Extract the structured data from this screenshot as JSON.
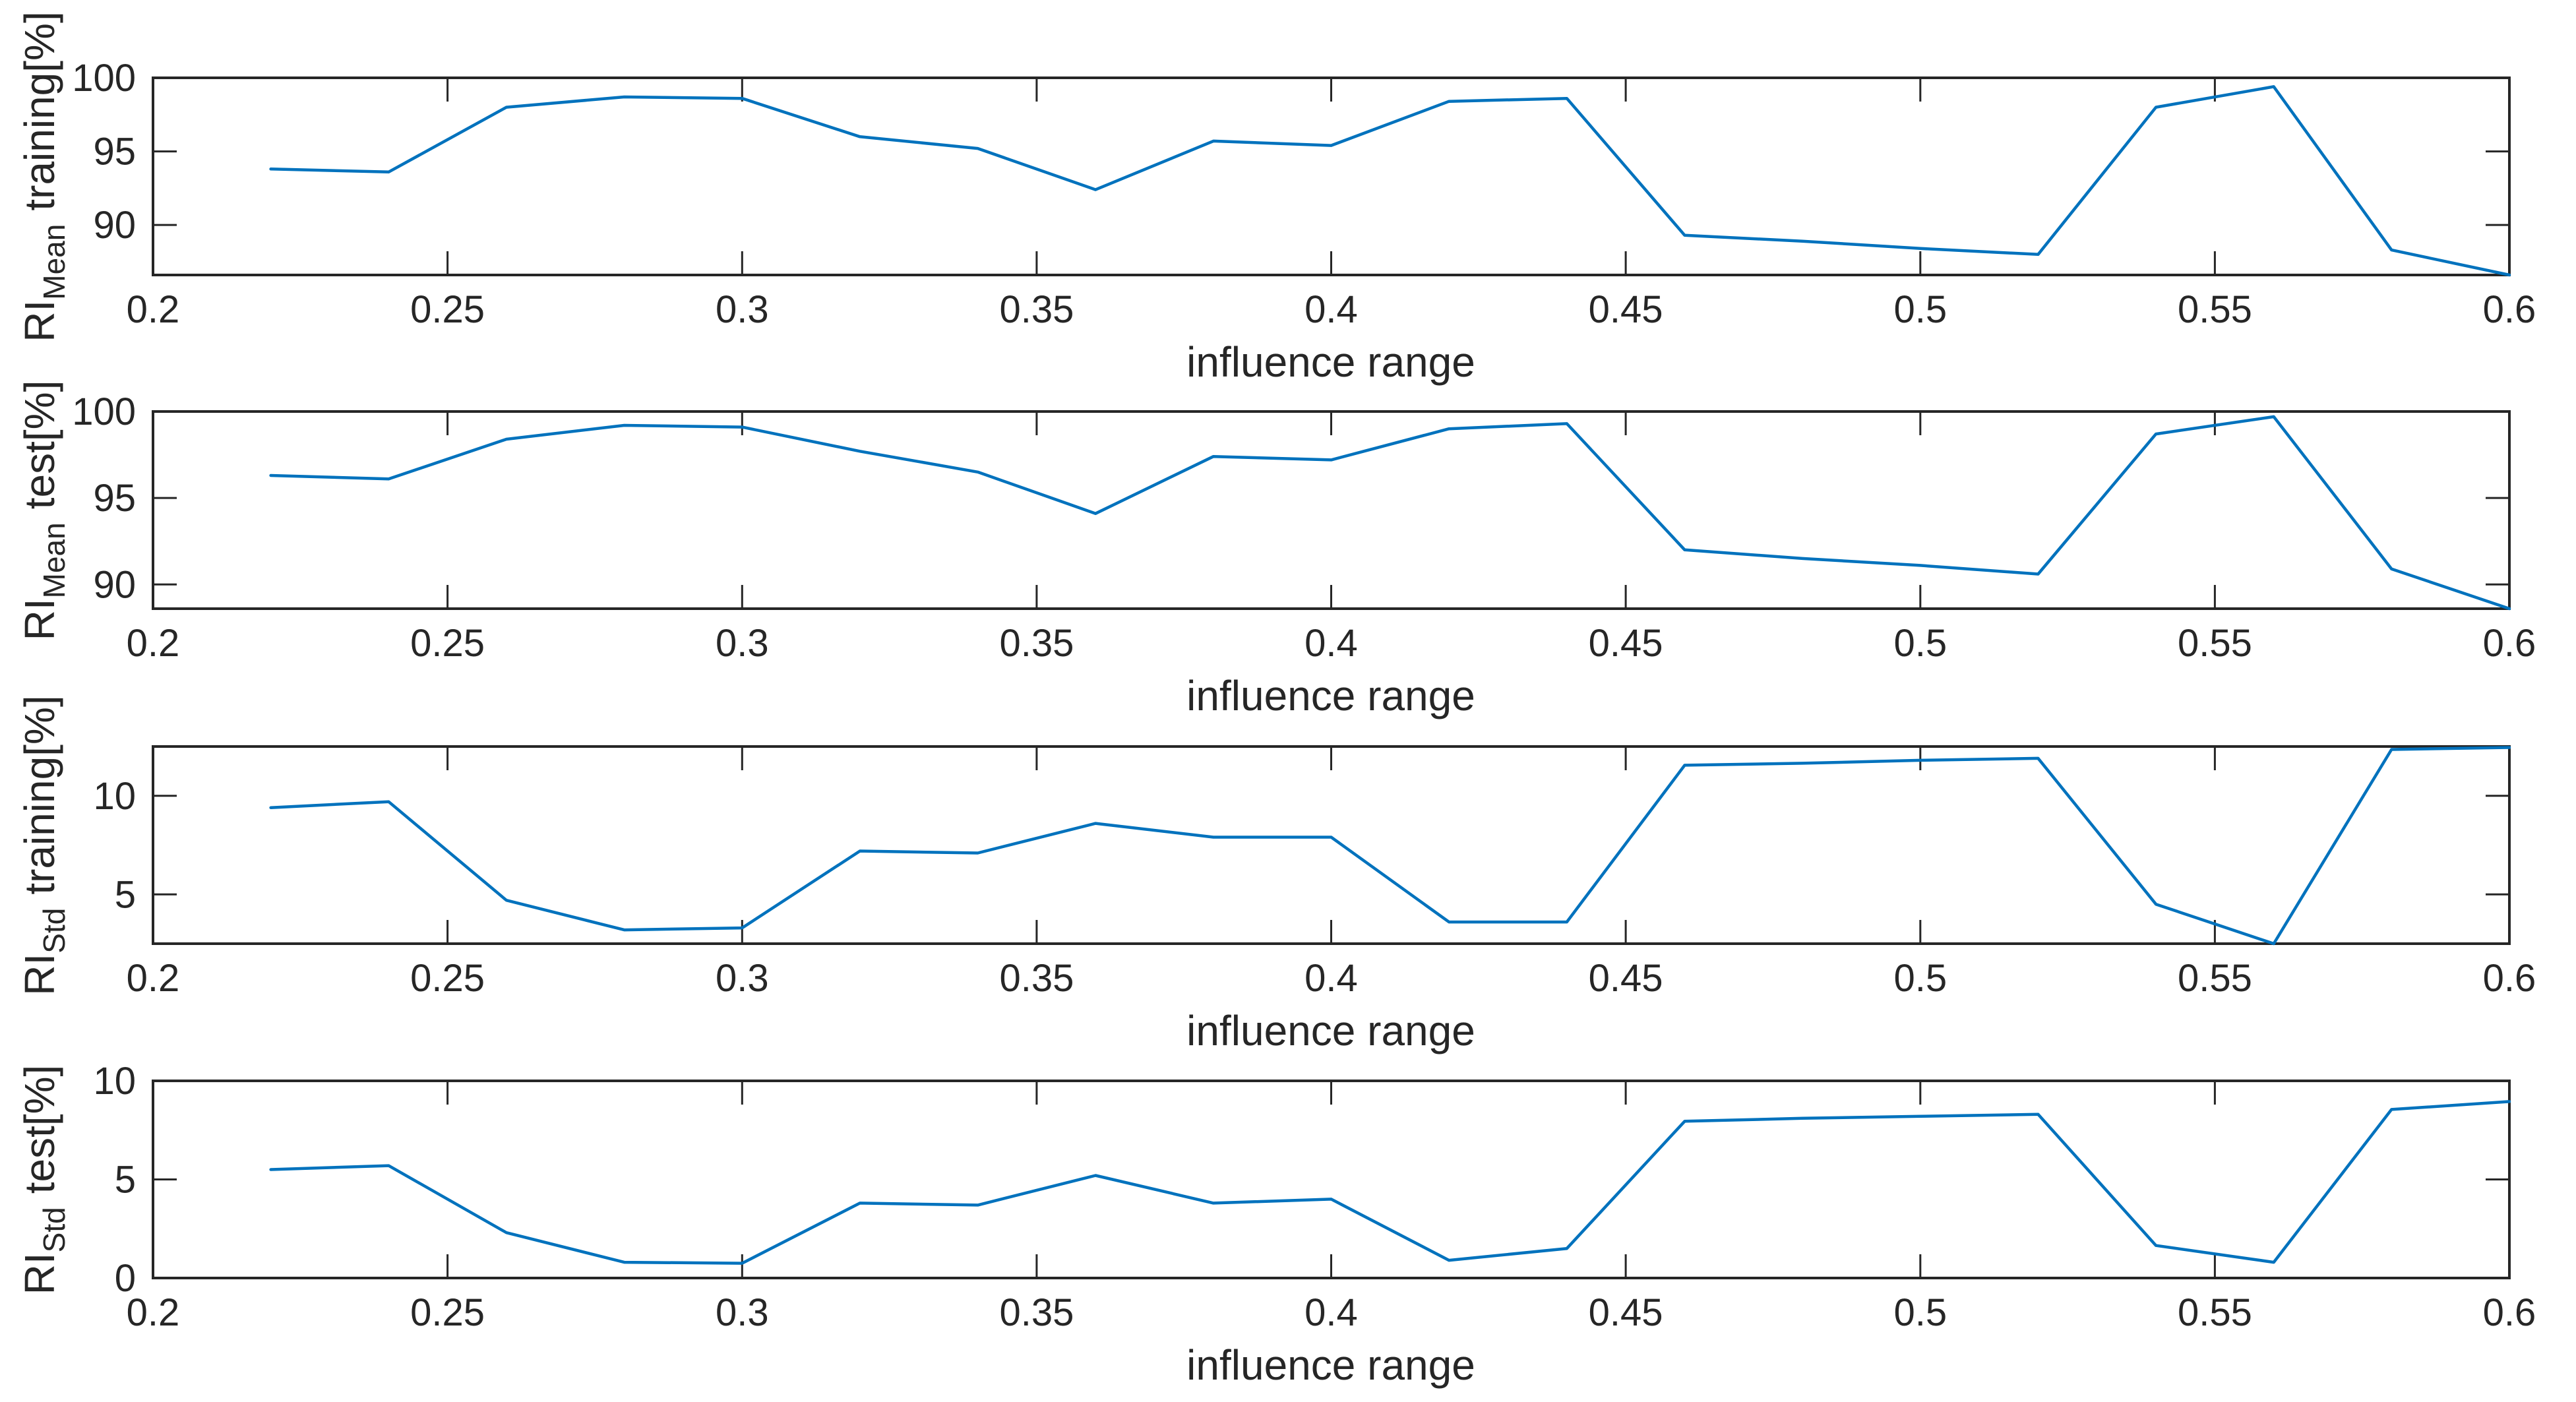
{
  "figure": {
    "background": "#ffffff",
    "line_color": "#0072BD",
    "axis_color": "#262626"
  },
  "chart_data": [
    {
      "type": "line",
      "ylabel": {
        "prefix": "RI",
        "sub": "Mean",
        "rest": "training[%]"
      },
      "xlabel": "influence range",
      "xlim": [
        0.2,
        0.6
      ],
      "ylim": [
        86.6,
        100
      ],
      "x_ticks": [
        0.2,
        0.25,
        0.3,
        0.35,
        0.4,
        0.45,
        0.5,
        0.55,
        0.6
      ],
      "x_tick_labels": [
        "0.2",
        "0.25",
        "0.3",
        "0.35",
        "0.4",
        "0.45",
        "0.5",
        "0.55",
        "0.6"
      ],
      "y_ticks": [
        90,
        95,
        100
      ],
      "y_tick_labels": [
        "90",
        "95",
        "100"
      ],
      "grid": false,
      "x": [
        0.22,
        0.24,
        0.26,
        0.28,
        0.3,
        0.32,
        0.34,
        0.36,
        0.38,
        0.4,
        0.42,
        0.44,
        0.46,
        0.48,
        0.5,
        0.52,
        0.54,
        0.56,
        0.58,
        0.6
      ],
      "y": [
        93.8,
        93.6,
        98.0,
        98.7,
        98.6,
        96.0,
        95.2,
        92.4,
        95.7,
        95.4,
        98.4,
        98.6,
        89.3,
        88.9,
        88.4,
        88.0,
        98.0,
        99.4,
        88.3,
        86.6
      ]
    },
    {
      "type": "line",
      "ylabel": {
        "prefix": "RI",
        "sub": "Mean",
        "rest": "test[%]"
      },
      "xlabel": "influence range",
      "xlim": [
        0.2,
        0.6
      ],
      "ylim": [
        88.6,
        100
      ],
      "x_ticks": [
        0.2,
        0.25,
        0.3,
        0.35,
        0.4,
        0.45,
        0.5,
        0.55,
        0.6
      ],
      "x_tick_labels": [
        "0.2",
        "0.25",
        "0.3",
        "0.35",
        "0.4",
        "0.45",
        "0.5",
        "0.55",
        "0.6"
      ],
      "y_ticks": [
        90,
        95,
        100
      ],
      "y_tick_labels": [
        "90",
        "95",
        "100"
      ],
      "grid": false,
      "x": [
        0.22,
        0.24,
        0.26,
        0.28,
        0.3,
        0.32,
        0.34,
        0.36,
        0.38,
        0.4,
        0.42,
        0.44,
        0.46,
        0.48,
        0.5,
        0.52,
        0.54,
        0.56,
        0.58,
        0.6
      ],
      "y": [
        96.3,
        96.1,
        98.4,
        99.2,
        99.1,
        97.7,
        96.5,
        94.1,
        97.4,
        97.2,
        99.0,
        99.3,
        92.0,
        91.5,
        91.1,
        90.6,
        98.7,
        99.7,
        90.9,
        88.6
      ]
    },
    {
      "type": "line",
      "ylabel": {
        "prefix": "RI",
        "sub": "Std",
        "rest": "training[%]"
      },
      "xlabel": "influence range",
      "xlim": [
        0.2,
        0.6
      ],
      "ylim": [
        2.5,
        12.5
      ],
      "x_ticks": [
        0.2,
        0.25,
        0.3,
        0.35,
        0.4,
        0.45,
        0.5,
        0.55,
        0.6
      ],
      "x_tick_labels": [
        "0.2",
        "0.25",
        "0.3",
        "0.35",
        "0.4",
        "0.45",
        "0.5",
        "0.55",
        "0.6"
      ],
      "y_ticks": [
        5,
        10
      ],
      "y_tick_labels": [
        "5",
        "10"
      ],
      "grid": false,
      "x": [
        0.22,
        0.24,
        0.26,
        0.28,
        0.3,
        0.32,
        0.34,
        0.36,
        0.38,
        0.4,
        0.42,
        0.44,
        0.46,
        0.48,
        0.5,
        0.52,
        0.54,
        0.56,
        0.58,
        0.6
      ],
      "y": [
        9.4,
        9.7,
        4.7,
        3.2,
        3.3,
        7.2,
        7.1,
        8.6,
        7.9,
        7.9,
        3.6,
        3.6,
        11.55,
        11.65,
        11.8,
        11.9,
        4.5,
        2.5,
        12.35,
        12.45
      ]
    },
    {
      "type": "line",
      "ylabel": {
        "prefix": "RI",
        "sub": "Std",
        "rest": "test[%]"
      },
      "xlabel": "influence range",
      "xlim": [
        0.2,
        0.6
      ],
      "ylim": [
        0,
        10
      ],
      "x_ticks": [
        0.2,
        0.25,
        0.3,
        0.35,
        0.4,
        0.45,
        0.5,
        0.55,
        0.6
      ],
      "x_tick_labels": [
        "0.2",
        "0.25",
        "0.3",
        "0.35",
        "0.4",
        "0.45",
        "0.5",
        "0.55",
        "0.6"
      ],
      "y_ticks": [
        0,
        5,
        10
      ],
      "y_tick_labels": [
        "0",
        "5",
        "10"
      ],
      "grid": false,
      "x": [
        0.22,
        0.24,
        0.26,
        0.28,
        0.3,
        0.32,
        0.34,
        0.36,
        0.38,
        0.4,
        0.42,
        0.44,
        0.46,
        0.48,
        0.5,
        0.52,
        0.54,
        0.56,
        0.58,
        0.6
      ],
      "y": [
        5.5,
        5.7,
        2.3,
        0.8,
        0.75,
        3.8,
        3.7,
        5.2,
        3.8,
        4.0,
        0.9,
        1.5,
        7.95,
        8.1,
        8.2,
        8.3,
        1.65,
        0.8,
        8.55,
        8.95
      ]
    }
  ]
}
